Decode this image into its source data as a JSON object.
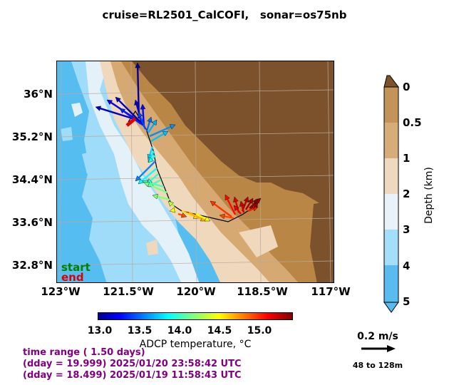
{
  "title": "cruise=RL2501_CalCOFI,   sonar=os75nb",
  "map": {
    "lat_ticks": [
      "36°N",
      "35.2°N",
      "34.4°N",
      "33.6°N",
      "32.8°N"
    ],
    "lon_ticks": [
      "123°W",
      "121.5°W",
      "120°W",
      "118.5°W",
      "117°W"
    ],
    "legend_start": "start",
    "legend_end": "end",
    "colors": {
      "deep_ocean": "#55bdf0",
      "mid_ocean": "#9fdcfa",
      "shelf": "#e4f1f9",
      "shallow": "#f0d8bc",
      "land_low": "#d6a973",
      "land_high": "#b98645",
      "land_top": "#7b522c",
      "start": "#008000",
      "end": "#dd0000"
    }
  },
  "depth_colorbar": {
    "label": "Depth (km)",
    "ticks": [
      "0",
      "0.5",
      "1",
      "2",
      "3",
      "4",
      "5"
    ],
    "colors": [
      "#c3935a",
      "#d6ac79",
      "#eed8c0",
      "#e8f2f8",
      "#a4def9",
      "#5abbee"
    ]
  },
  "temp_colorbar": {
    "label": "ADCP temperature, °C",
    "ticks": [
      "13.0",
      "13.5",
      "14.0",
      "14.5",
      "15.0"
    ],
    "colormap": "jet",
    "range": [
      13.0,
      15.4
    ]
  },
  "time_info": {
    "line1": "time range ( 1.50 days)",
    "line2": "(dday = 19.999) 2025/01/20 23:58:42 UTC",
    "line3": "(dday = 18.499) 2025/01/19 11:58:43 UTC"
  },
  "scale": {
    "speed": "0.2 m/s",
    "depth_range": "48 to 128m"
  }
}
